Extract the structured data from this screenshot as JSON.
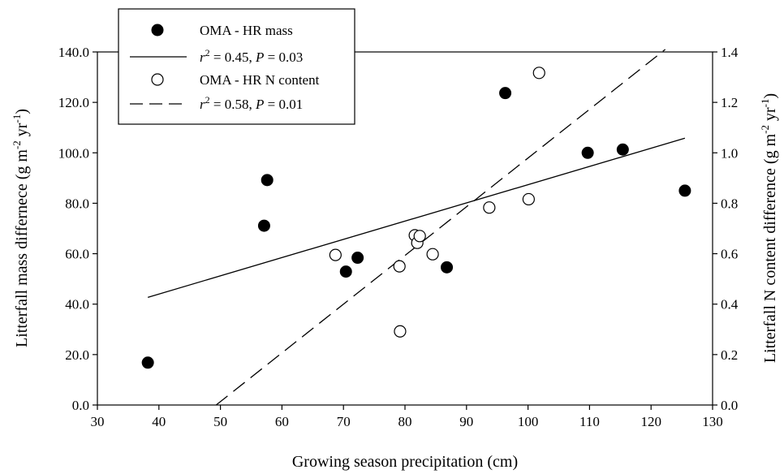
{
  "chart_data": {
    "type": "scatter",
    "xlabel": "Growing season precipitation (cm)",
    "ylabel_left": "Litterfall mass differnece (g m-2 yr-1)",
    "ylabel_right": "Litterfall N content difference (g m-2 yr-1)",
    "xlim": [
      30,
      130
    ],
    "ylim_left": [
      0,
      140
    ],
    "ylim_right": [
      0,
      1.4
    ],
    "x_ticks": [
      "30",
      "40",
      "50",
      "60",
      "70",
      "80",
      "90",
      "100",
      "110",
      "120",
      "130"
    ],
    "y_left_ticks": [
      "0.0",
      "20.0",
      "40.0",
      "60.0",
      "80.0",
      "100.0",
      "120.0",
      "140.0"
    ],
    "y_right_ticks": [
      "0.0",
      "0.2",
      "0.4",
      "0.6",
      "0.8",
      "1.0",
      "1.2",
      "1.4"
    ],
    "grid": false,
    "legend_position": "top-left",
    "series": [
      {
        "name": "OMA - HR mass",
        "axis": "left",
        "marker": "filled-circle",
        "points": [
          [
            38.2,
            16.8
          ],
          [
            57.1,
            71.1
          ],
          [
            57.6,
            89.2
          ],
          [
            70.4,
            52.9
          ],
          [
            72.3,
            58.4
          ],
          [
            86.8,
            54.6
          ],
          [
            96.3,
            123.7
          ],
          [
            109.7,
            100.0
          ],
          [
            115.4,
            101.3
          ],
          [
            125.5,
            85.0
          ]
        ],
        "fit": {
          "style": "solid",
          "x": [
            38.2,
            125.5
          ],
          "y": [
            42.7,
            105.8
          ],
          "label": "r2 = 0.45, P = 0.03"
        }
      },
      {
        "name": "OMA - HR N content",
        "axis": "right",
        "marker": "open-circle",
        "points": [
          [
            68.7,
            0.595
          ],
          [
            79.1,
            0.55
          ],
          [
            79.2,
            0.292
          ],
          [
            81.6,
            0.673
          ],
          [
            82.0,
            0.643
          ],
          [
            82.4,
            0.67
          ],
          [
            84.5,
            0.598
          ],
          [
            93.7,
            0.783
          ],
          [
            100.1,
            0.816
          ],
          [
            101.8,
            1.317
          ]
        ],
        "fit": {
          "style": "dashed",
          "x": [
            49.3,
            122.3
          ],
          "y": [
            0.0,
            1.41
          ],
          "label": "r2 = 0.58, P = 0.01"
        }
      }
    ],
    "legend": [
      {
        "marker": "filled-circle",
        "text": "OMA - HR mass"
      },
      {
        "marker": "solid-line",
        "r2": "0.45",
        "p": "0.03"
      },
      {
        "marker": "open-circle",
        "text": "OMA - HR N content"
      },
      {
        "marker": "dashed-line",
        "r2": "0.58",
        "p": "0.01"
      }
    ]
  }
}
